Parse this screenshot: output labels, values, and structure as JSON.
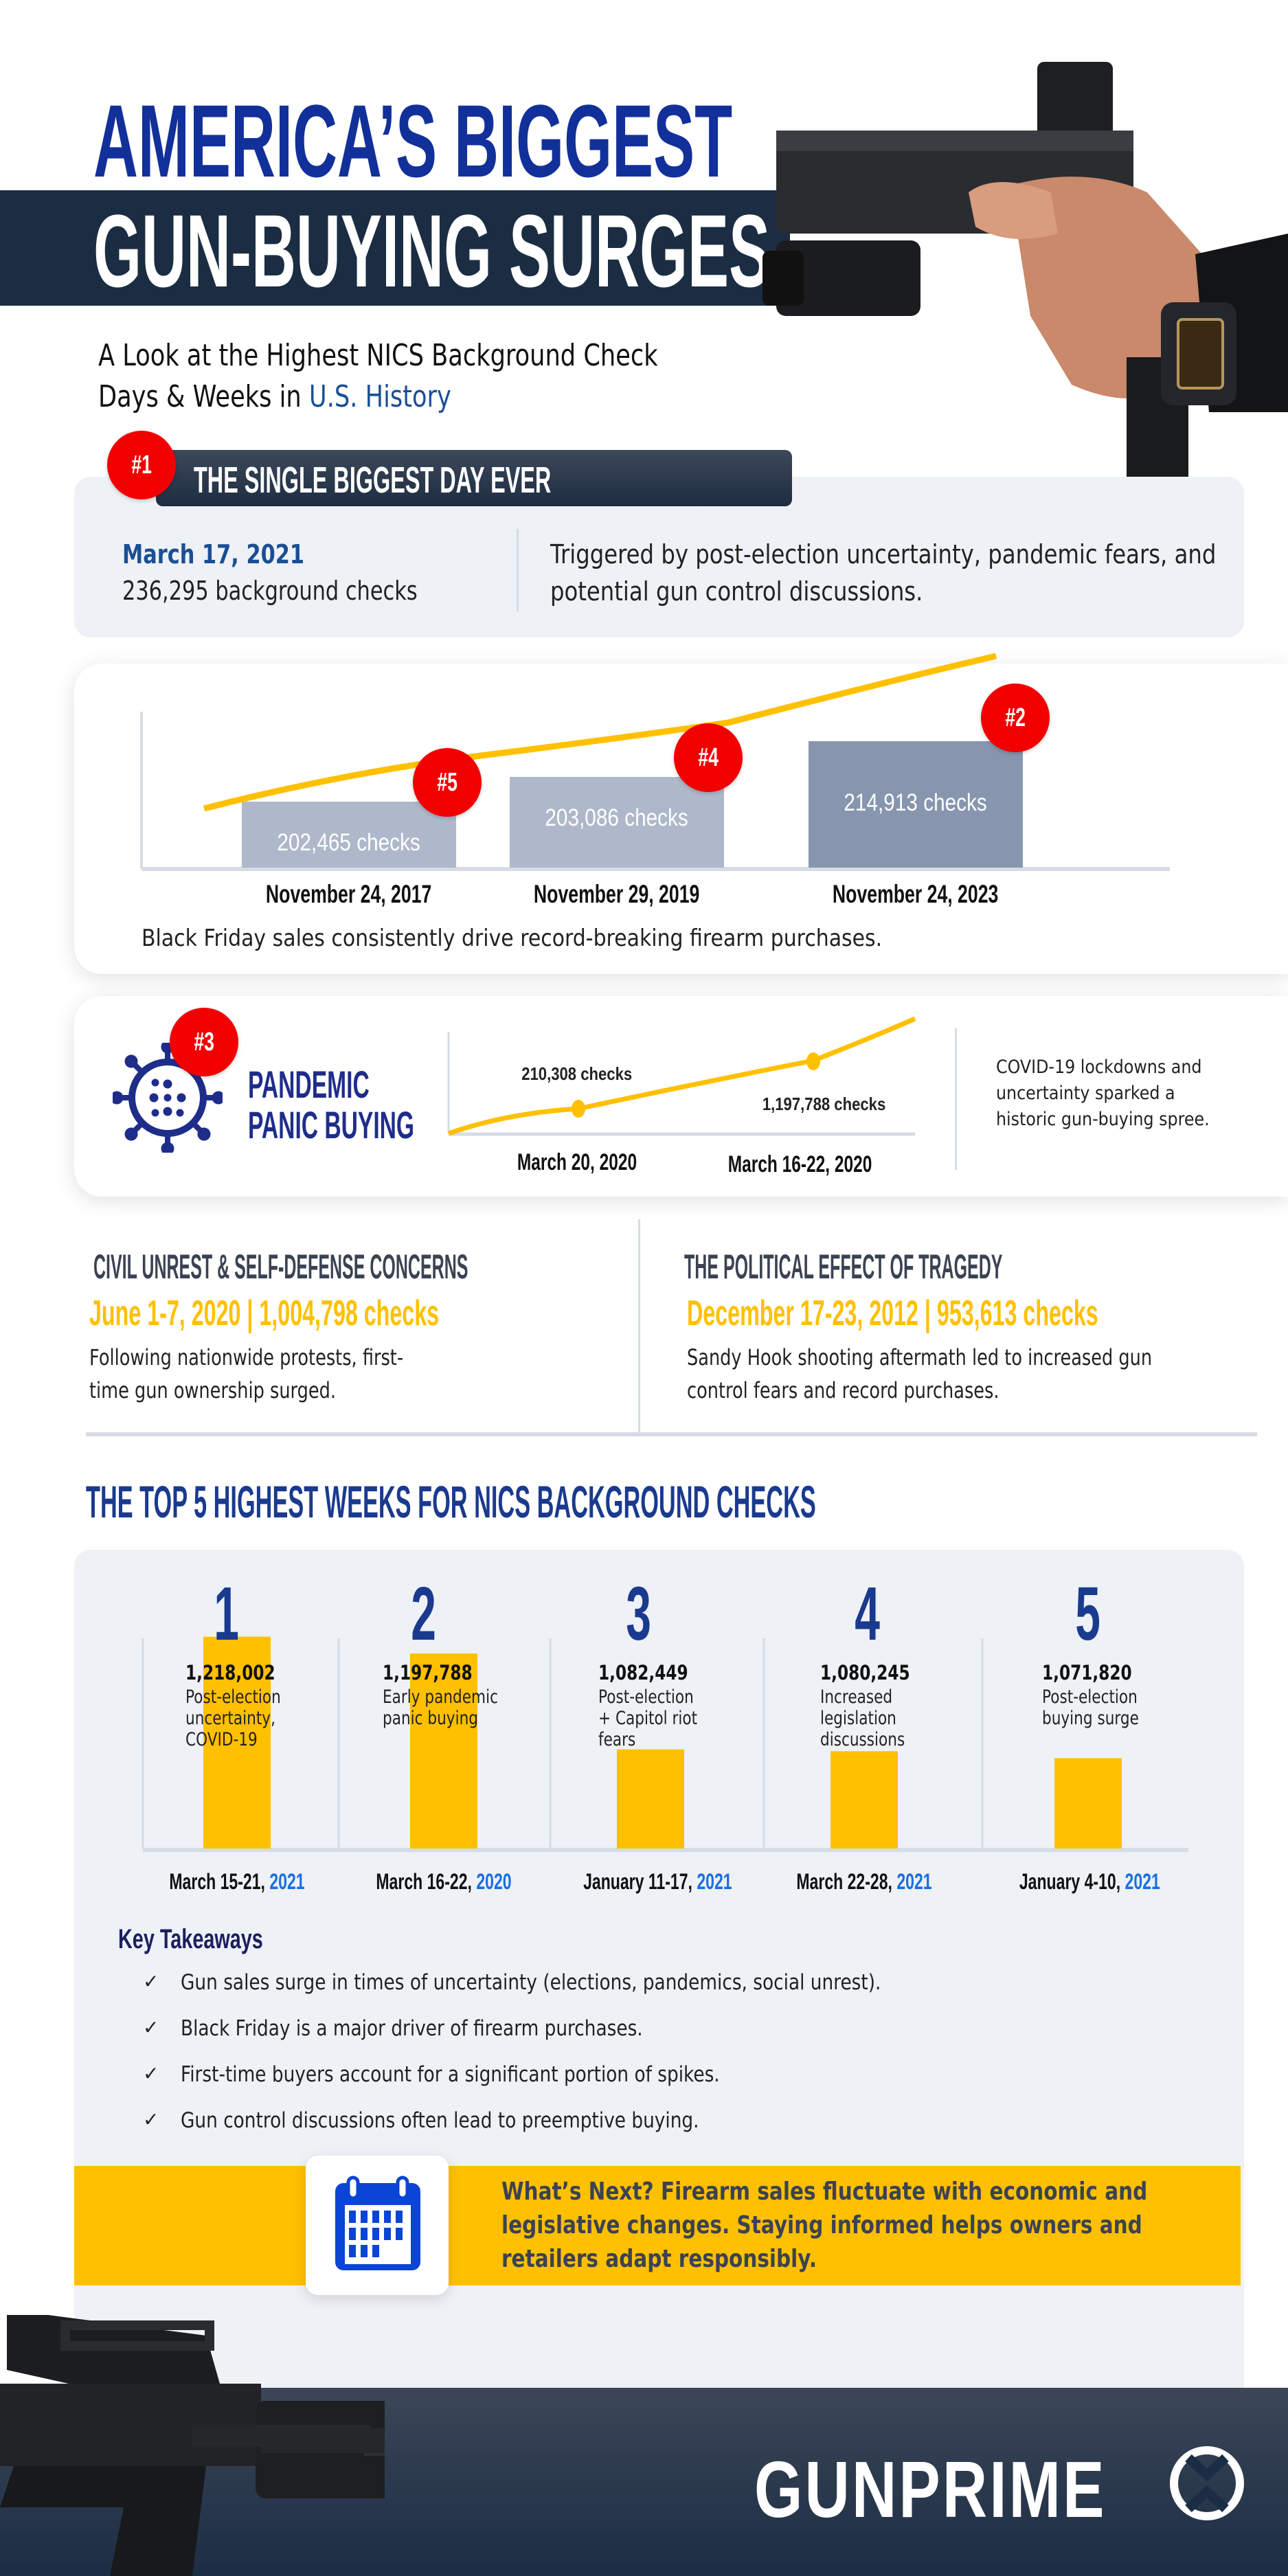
{
  "header": {
    "title_line1": "AMERICA’S BIGGEST",
    "title_line2": "GUN-BUYING SURGES",
    "subtitle_line1": "A Look at the Highest NICS Background Check",
    "subtitle_line2_prefix": "Days & Weeks in ",
    "subtitle_line2_highlight": "U.S. History"
  },
  "biggest_day": {
    "badge": "#1",
    "heading": "THE SINGLE BIGGEST DAY EVER",
    "date": "March 17, 2021",
    "checks": "236,295 background checks",
    "description": "Triggered by post-election uncertainty, pandemic fears, and potential gun control discussions."
  },
  "black_friday": {
    "caption": "Black Friday sales consistently drive record-breaking firearm purchases.",
    "chart_data": {
      "type": "bar",
      "categories": [
        "November 24, 2017",
        "November 29, 2019",
        "November 24, 2023"
      ],
      "values": [
        202465,
        203086,
        214913
      ],
      "bar_labels": [
        "202,465  checks",
        "203,086 checks",
        "214,913 checks"
      ],
      "ranks": [
        "#5",
        "#4",
        "#2"
      ],
      "colors": [
        "#aeb8ca",
        "#aeb8ca",
        "#8796ae"
      ],
      "trend_line_color": "#ffc000"
    }
  },
  "pandemic": {
    "badge": "#3",
    "title_line1": "PANDEMIC",
    "title_line2": "PANIC BUYING",
    "description": "COVID-19 lockdowns and uncertainty sparked a historic gun-buying spree.",
    "chart_data": {
      "type": "line",
      "points": [
        {
          "label": "March 20, 2020",
          "value_label": "210,308 checks"
        },
        {
          "label": "March 16-22, 2020",
          "value_label": "1,197,788 checks"
        }
      ],
      "line_color": "#ffc000"
    }
  },
  "civil_unrest": {
    "heading": "CIVIL UNREST & SELF-DEFENSE CONCERNS",
    "highlight": "June 1-7, 2020 | 1,004,798 checks",
    "description_line1": "Following nationwide protests, first-",
    "description_line2": "time gun ownership surged."
  },
  "tragedy": {
    "heading": "THE POLITICAL EFFECT OF TRAGEDY",
    "highlight": "December 17-23, 2012 | 953,613 checks",
    "description_line1": "Sandy Hook shooting aftermath led to increased gun",
    "description_line2": "control fears and record purchases."
  },
  "top5": {
    "title": "THE TOP 5 HIGHEST WEEKS FOR NICS BACKGROUND CHECKS",
    "chart_data": {
      "type": "bar",
      "bar_color": "#ffc000",
      "year_color": "#1a6fe0",
      "items": [
        {
          "rank": "1",
          "value": 1218002,
          "value_label": "1,218,002",
          "desc": [
            "Post-election",
            "uncertainty,",
            "COVID-19"
          ],
          "date": "March 15-21, ",
          "year": "2021"
        },
        {
          "rank": "2",
          "value": 1197788,
          "value_label": "1,197,788",
          "desc": [
            "Early pandemic",
            "panic buying"
          ],
          "date": "March 16-22, ",
          "year": "2020"
        },
        {
          "rank": "3",
          "value": 1082449,
          "value_label": "1,082,449",
          "desc": [
            "Post-election",
            "+ Capitol riot",
            "fears"
          ],
          "date": "January 11-17, ",
          "year": "2021"
        },
        {
          "rank": "4",
          "value": 1080245,
          "value_label": "1,080,245",
          "desc": [
            "Increased",
            "legislation",
            "discussions"
          ],
          "date": "March 22-28, ",
          "year": "2021"
        },
        {
          "rank": "5",
          "value": 1071820,
          "value_label": "1,071,820",
          "desc": [
            "Post-election",
            "buying surge"
          ],
          "date": "January 4-10, ",
          "year": "2021"
        }
      ]
    }
  },
  "takeaways": {
    "heading": "Key Takeaways",
    "check_glyph": "✓",
    "items": [
      "Gun sales surge in times of uncertainty (elections, pandemics, social unrest).",
      "Black Friday is a major driver of firearm purchases.",
      "First-time buyers account for a significant portion of spikes.",
      "Gun control discussions often lead to preemptive buying."
    ]
  },
  "whats_next": {
    "icon": "calendar-icon",
    "line1": "What’s Next? Firearm sales fluctuate with economic and",
    "line2": "legislative changes. Staying informed helps owners and",
    "line3": "retailers adapt responsibly."
  },
  "footer": {
    "logo": "GUNPRIME"
  },
  "colors": {
    "navy": "#1b2d42",
    "title_blue": "#12309a",
    "accent_yellow": "#ffc000",
    "badge_red": "#f20000",
    "panel_gray": "#eef1f6"
  }
}
